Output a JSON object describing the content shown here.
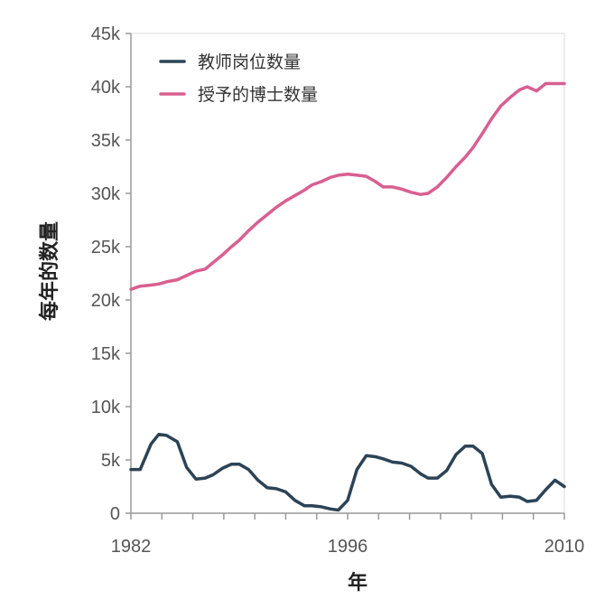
{
  "chart_data": {
    "type": "line",
    "xlabel": "年",
    "ylabel": "每年的数量",
    "xlim": [
      1982,
      2010
    ],
    "ylim": [
      0,
      45000
    ],
    "x_ticks": [
      1982,
      1996,
      2010
    ],
    "y_ticks": [
      0,
      5000,
      10000,
      15000,
      20000,
      25000,
      30000,
      35000,
      40000,
      45000
    ],
    "y_tick_labels": [
      "0",
      "5k",
      "10k",
      "15k",
      "20k",
      "25k",
      "30k",
      "35k",
      "40k",
      "45k"
    ],
    "legend_position": "top-left",
    "grid": false,
    "x": [
      1982,
      1982.6,
      1983.3,
      1983.8,
      1984.3,
      1985,
      1985.6,
      1986.2,
      1986.8,
      1987.3,
      1987.9,
      1988.5,
      1989,
      1989.6,
      1990.2,
      1990.8,
      1991.4,
      1992,
      1992.6,
      1993.2,
      1993.7,
      1994.3,
      1994.9,
      1995.4,
      1996,
      1996.6,
      1997.2,
      1997.8,
      1998.3,
      1998.9,
      1999.5,
      2000.1,
      2000.7,
      2001.2,
      2001.8,
      2002.4,
      2003,
      2003.6,
      2004.1,
      2004.7,
      2005.3,
      2005.9,
      2006.5,
      2007.1,
      2007.6,
      2008.2,
      2008.8,
      2009.4,
      2010
    ],
    "series": [
      {
        "name": "教师岗位数量",
        "color": "#2c4356",
        "values": [
          4100,
          4100,
          6500,
          7400,
          7300,
          6700,
          4300,
          3200,
          3300,
          3600,
          4200,
          4600,
          4600,
          4100,
          3100,
          2400,
          2300,
          2000,
          1200,
          700,
          700,
          600,
          400,
          300,
          1200,
          4100,
          5400,
          5300,
          5100,
          4800,
          4700,
          4400,
          3700,
          3300,
          3300,
          4000,
          5500,
          6300,
          6300,
          5600,
          2700,
          1500,
          1600,
          1500,
          1100,
          1200,
          2200,
          3100,
          2500
        ]
      },
      {
        "name": "授予的博士数量",
        "color": "#d95f91",
        "values": [
          21000,
          21300,
          21400,
          21500,
          21700,
          21900,
          22300,
          22700,
          22900,
          23500,
          24200,
          25000,
          25600,
          26500,
          27300,
          28000,
          28700,
          29300,
          29800,
          30300,
          30800,
          31100,
          31500,
          31700,
          31800,
          31700,
          31600,
          31100,
          30600,
          30600,
          30400,
          30100,
          29900,
          30000,
          30600,
          31500,
          32500,
          33400,
          34300,
          35600,
          37000,
          38200,
          39000,
          39700,
          40000,
          39600,
          40300,
          40300,
          40300
        ]
      }
    ]
  }
}
